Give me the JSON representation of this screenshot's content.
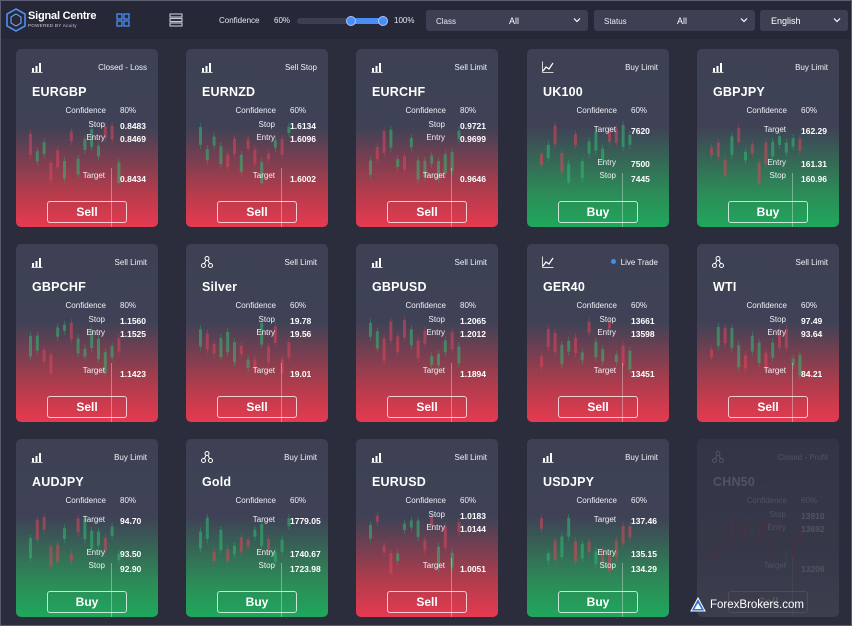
{
  "header": {
    "logo_title": "Signal Centre",
    "logo_sub": "POWERED BY Acuity",
    "confidence_label": "Confidence",
    "confidence_min": "60%",
    "confidence_max": "100%",
    "class_label": "Class",
    "class_value": "All",
    "status_label": "Status",
    "status_value": "All",
    "language_value": "English",
    "accent_color": "#4a8ef5"
  },
  "labels": {
    "confidence": "Confidence",
    "stop": "Stop",
    "entry": "Entry",
    "target": "Target"
  },
  "cards": [
    {
      "icon": "bar-chart-icon",
      "status": "Closed - Loss",
      "symbol": "EURGBP",
      "confidence": "80%",
      "top_label": "stop",
      "top_value": "0.8483",
      "mid_label": "entry",
      "mid_value": "0.8469",
      "bottom_label": "target",
      "bottom_value": "0.8434",
      "action": "Sell",
      "side": "sell"
    },
    {
      "icon": "bar-chart-icon",
      "status": "Sell Stop",
      "symbol": "EURNZD",
      "confidence": "60%",
      "top_label": "stop",
      "top_value": "1.6134",
      "mid_label": "entry",
      "mid_value": "1.6096",
      "bottom_label": "target",
      "bottom_value": "1.6002",
      "action": "Sell",
      "side": "sell"
    },
    {
      "icon": "bar-chart-icon",
      "status": "Sell Limit",
      "symbol": "EURCHF",
      "confidence": "80%",
      "top_label": "stop",
      "top_value": "0.9721",
      "mid_label": "entry",
      "mid_value": "0.9699",
      "bottom_label": "target",
      "bottom_value": "0.9646",
      "action": "Sell",
      "side": "sell"
    },
    {
      "icon": "line-chart-icon",
      "status": "Buy Limit",
      "symbol": "UK100",
      "confidence": "60%",
      "top_label": "target",
      "top_value": "7620",
      "mid_label": "entry",
      "mid_value": "7500",
      "bottom_label": "stop",
      "bottom_value": "7445",
      "action": "Buy",
      "side": "buy"
    },
    {
      "icon": "bar-chart-icon",
      "status": "Buy Limit",
      "symbol": "GBPJPY",
      "confidence": "60%",
      "top_label": "target",
      "top_value": "162.29",
      "mid_label": "entry",
      "mid_value": "161.31",
      "bottom_label": "stop",
      "bottom_value": "160.96",
      "action": "Buy",
      "side": "buy"
    },
    {
      "icon": "bar-chart-icon",
      "status": "Sell Limit",
      "symbol": "GBPCHF",
      "confidence": "80%",
      "top_label": "stop",
      "top_value": "1.1560",
      "mid_label": "entry",
      "mid_value": "1.1525",
      "bottom_label": "target",
      "bottom_value": "1.1423",
      "action": "Sell",
      "side": "sell"
    },
    {
      "icon": "nodes-icon",
      "status": "Sell Limit",
      "symbol": "Silver",
      "confidence": "60%",
      "top_label": "stop",
      "top_value": "19.78",
      "mid_label": "entry",
      "mid_value": "19.56",
      "bottom_label": "target",
      "bottom_value": "19.01",
      "action": "Sell",
      "side": "sell"
    },
    {
      "icon": "bar-chart-icon",
      "status": "Sell Limit",
      "symbol": "GBPUSD",
      "confidence": "80%",
      "top_label": "stop",
      "top_value": "1.2065",
      "mid_label": "entry",
      "mid_value": "1.2012",
      "bottom_label": "target",
      "bottom_value": "1.1894",
      "action": "Sell",
      "side": "sell"
    },
    {
      "icon": "line-chart-icon",
      "status": "Live Trade",
      "live": true,
      "symbol": "GER40",
      "confidence": "60%",
      "top_label": "stop",
      "top_value": "13661",
      "mid_label": "entry",
      "mid_value": "13598",
      "bottom_label": "target",
      "bottom_value": "13451",
      "action": "Sell",
      "side": "sell"
    },
    {
      "icon": "nodes-icon",
      "status": "Sell Limit",
      "symbol": "WTI",
      "confidence": "60%",
      "top_label": "stop",
      "top_value": "97.49",
      "mid_label": "entry",
      "mid_value": "93.64",
      "bottom_label": "target",
      "bottom_value": "84.21",
      "action": "Sell",
      "side": "sell"
    },
    {
      "icon": "bar-chart-icon",
      "status": "Buy Limit",
      "symbol": "AUDJPY",
      "confidence": "80%",
      "top_label": "target",
      "top_value": "94.70",
      "mid_label": "entry",
      "mid_value": "93.50",
      "bottom_label": "stop",
      "bottom_value": "92.90",
      "action": "Buy",
      "side": "buy"
    },
    {
      "icon": "nodes-icon",
      "status": "Buy Limit",
      "symbol": "Gold",
      "confidence": "60%",
      "top_label": "target",
      "top_value": "1779.05",
      "mid_label": "entry",
      "mid_value": "1740.67",
      "bottom_label": "stop",
      "bottom_value": "1723.98",
      "action": "Buy",
      "side": "buy"
    },
    {
      "icon": "bar-chart-icon",
      "status": "Sell Limit",
      "symbol": "EURUSD",
      "confidence": "60%",
      "top_label": "stop",
      "top_value": "1.0183",
      "mid_label": "entry",
      "mid_value": "1.0144",
      "bottom_label": "target",
      "bottom_value": "1.0051",
      "action": "Sell",
      "side": "sell"
    },
    {
      "icon": "bar-chart-icon",
      "status": "Buy Limit",
      "symbol": "USDJPY",
      "confidence": "60%",
      "top_label": "target",
      "top_value": "137.46",
      "mid_label": "entry",
      "mid_value": "135.15",
      "bottom_label": "stop",
      "bottom_value": "134.29",
      "action": "Buy",
      "side": "buy"
    },
    {
      "icon": "nodes-icon",
      "status": "Closed - Profit",
      "symbol": "CHN50",
      "confidence": "60%",
      "top_label": "stop",
      "top_value": "13910",
      "mid_label": "entry",
      "mid_value": "13692",
      "bottom_label": "target",
      "bottom_value": "13206",
      "action": "Sell",
      "side": "faded"
    }
  ],
  "watermark": "ForexBrokers.com"
}
